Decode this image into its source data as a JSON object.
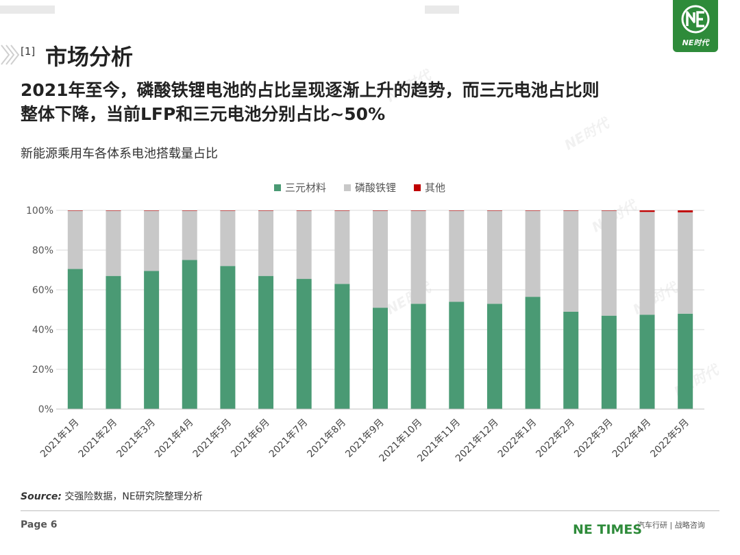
{
  "section": {
    "number": "[1]",
    "title": "市场分析"
  },
  "headline": [
    "2021年至今，磷酸铁锂电池的占比呈现逐渐上升的趋势，而三元电池占比则",
    "整体下降，当前LFP和三元电池分别占比~50%"
  ],
  "chart_caption": "新能源乘用车各体系电池搭载量占比",
  "source": {
    "label": "Source:",
    "text": "交强险数据，NE研究院整理分析"
  },
  "footer": {
    "page": "Page 6",
    "brand": "NE TIMES",
    "tagline": "汽车行研 | 战略咨询"
  },
  "logo": {
    "text": "NE时代"
  },
  "watermark": "NE时代",
  "colors": {
    "ncm": "#4a9a74",
    "lfp": "#c8c8c8",
    "other": "#c00000",
    "brand": "#2e8b3a"
  },
  "chart_data": {
    "type": "bar",
    "stacked": true,
    "title": "",
    "categories": [
      "2021年1月",
      "2021年2月",
      "2021年3月",
      "2021年4月",
      "2021年5月",
      "2021年6月",
      "2021年7月",
      "2021年8月",
      "2021年9月",
      "2021年10月",
      "2021年11月",
      "2021年12月",
      "2022年1月",
      "2022年2月",
      "2022年3月",
      "2022年4月",
      "2022年5月"
    ],
    "series": [
      {
        "name": "三元材料",
        "color": "#4a9a74",
        "values": [
          70.5,
          67,
          69.5,
          75,
          72,
          67,
          65.5,
          63,
          51,
          53,
          54,
          53,
          56.5,
          49,
          47,
          47.5,
          48
        ]
      },
      {
        "name": "磷酸铁锂",
        "color": "#c8c8c8",
        "values": [
          29.3,
          32.8,
          30.3,
          24.8,
          27.8,
          32.8,
          34.3,
          36.8,
          48.8,
          46.8,
          45.8,
          46.8,
          43.3,
          50.8,
          52.8,
          51.7,
          51
        ]
      },
      {
        "name": "其他",
        "color": "#c00000",
        "values": [
          0.2,
          0.2,
          0.2,
          0.2,
          0.2,
          0.2,
          0.2,
          0.2,
          0.2,
          0.2,
          0.2,
          0.2,
          0.2,
          0.2,
          0.2,
          0.8,
          1.0
        ]
      }
    ],
    "ylim": [
      0,
      100
    ],
    "yticks": [
      "0%",
      "20%",
      "40%",
      "60%",
      "80%",
      "100%"
    ],
    "legend_position": "top",
    "grid": true
  }
}
